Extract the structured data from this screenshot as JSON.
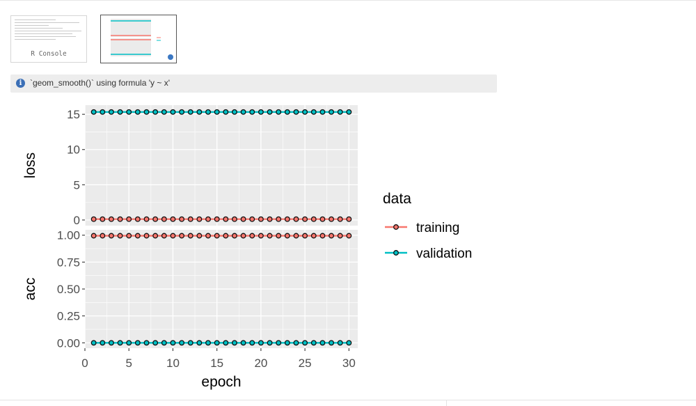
{
  "message": {
    "text": "`geom_smooth()` using formula 'y ~ x'"
  },
  "thumbnails": {
    "console_label": "R Console"
  },
  "colors": {
    "training": "#F8766D",
    "validation": "#00BFC4",
    "panel": "#EBEBEB",
    "info": "#3B6FB6"
  },
  "chart_data": {
    "type": "line",
    "xlabel": "epoch",
    "xlim": [
      0,
      31
    ],
    "x_ticks": [
      0,
      5,
      10,
      15,
      20,
      25,
      30
    ],
    "x": [
      1,
      2,
      3,
      4,
      5,
      6,
      7,
      8,
      9,
      10,
      11,
      12,
      13,
      14,
      15,
      16,
      17,
      18,
      19,
      20,
      21,
      22,
      23,
      24,
      25,
      26,
      27,
      28,
      29,
      30
    ],
    "legend": {
      "title": "data",
      "position": "right",
      "entries": [
        "training",
        "validation"
      ]
    },
    "panels": [
      {
        "metric": "loss",
        "ylim": [
          -0.8,
          16.3
        ],
        "y_ticks": [
          0,
          5,
          10,
          15
        ],
        "y_tick_labels": [
          "0",
          "5",
          "10",
          "15"
        ],
        "series": [
          {
            "name": "training",
            "value": 0.12
          },
          {
            "name": "validation",
            "value": 15.33
          }
        ]
      },
      {
        "metric": "acc",
        "ylim": [
          -0.05,
          1.05
        ],
        "y_ticks": [
          0,
          0.25,
          0.5,
          0.75,
          1
        ],
        "y_tick_labels": [
          "0.00",
          "0.25",
          "0.50",
          "0.75",
          "1.00"
        ],
        "series": [
          {
            "name": "training",
            "value": 0.995
          },
          {
            "name": "validation",
            "value": 0.0
          }
        ]
      }
    ]
  }
}
